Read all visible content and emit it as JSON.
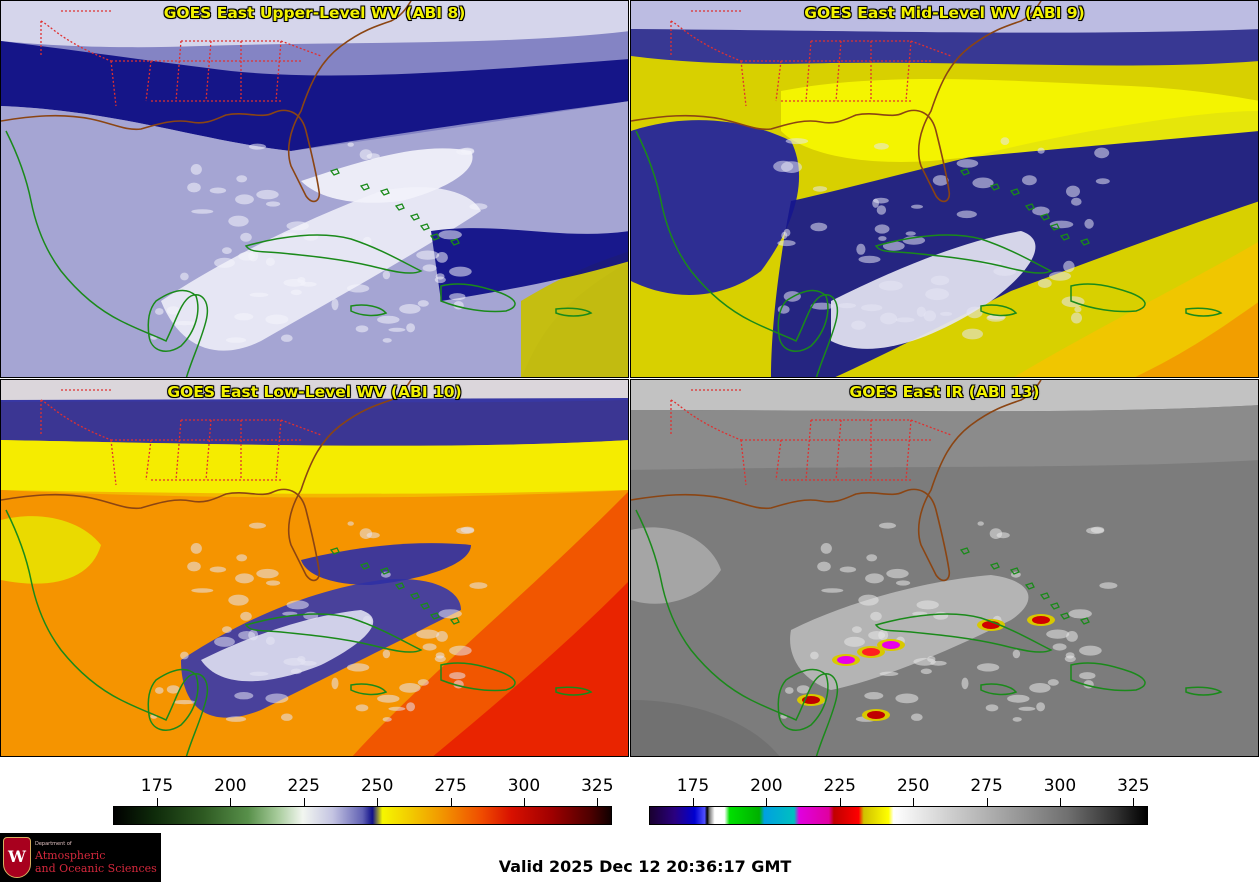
{
  "panels": [
    {
      "id": "tl",
      "title": "GOES East Upper-Level WV (ABI 8)",
      "style": "wv_blue"
    },
    {
      "id": "tr",
      "title": "GOES East Mid-Level WV (ABI 9)",
      "style": "wv_yellow"
    },
    {
      "id": "bl",
      "title": "GOES East Low-Level WV (ABI 10)",
      "style": "wv_warm"
    },
    {
      "id": "br",
      "title": "GOES East IR (ABI 13)",
      "style": "ir_gray"
    }
  ],
  "colorbars": {
    "wv": {
      "range": [
        160,
        330
      ],
      "ticks": [
        "175",
        "200",
        "225",
        "250",
        "275",
        "300",
        "325"
      ]
    },
    "ir": {
      "range": [
        160,
        330
      ],
      "ticks": [
        "175",
        "200",
        "225",
        "250",
        "275",
        "300",
        "325"
      ]
    }
  },
  "logo": {
    "crest_letter": "W",
    "dept": "Department of",
    "line1": "Atmospheric",
    "line2": "and Oceanic Sciences"
  },
  "valid_time": "Valid 2025 Dec 12 20:36:17 GMT",
  "colors": {
    "state_borders": "#e03030",
    "coastline_us": "#8b4513",
    "coastline_other": "#1a8a1a",
    "title_text": "#f2f200"
  }
}
